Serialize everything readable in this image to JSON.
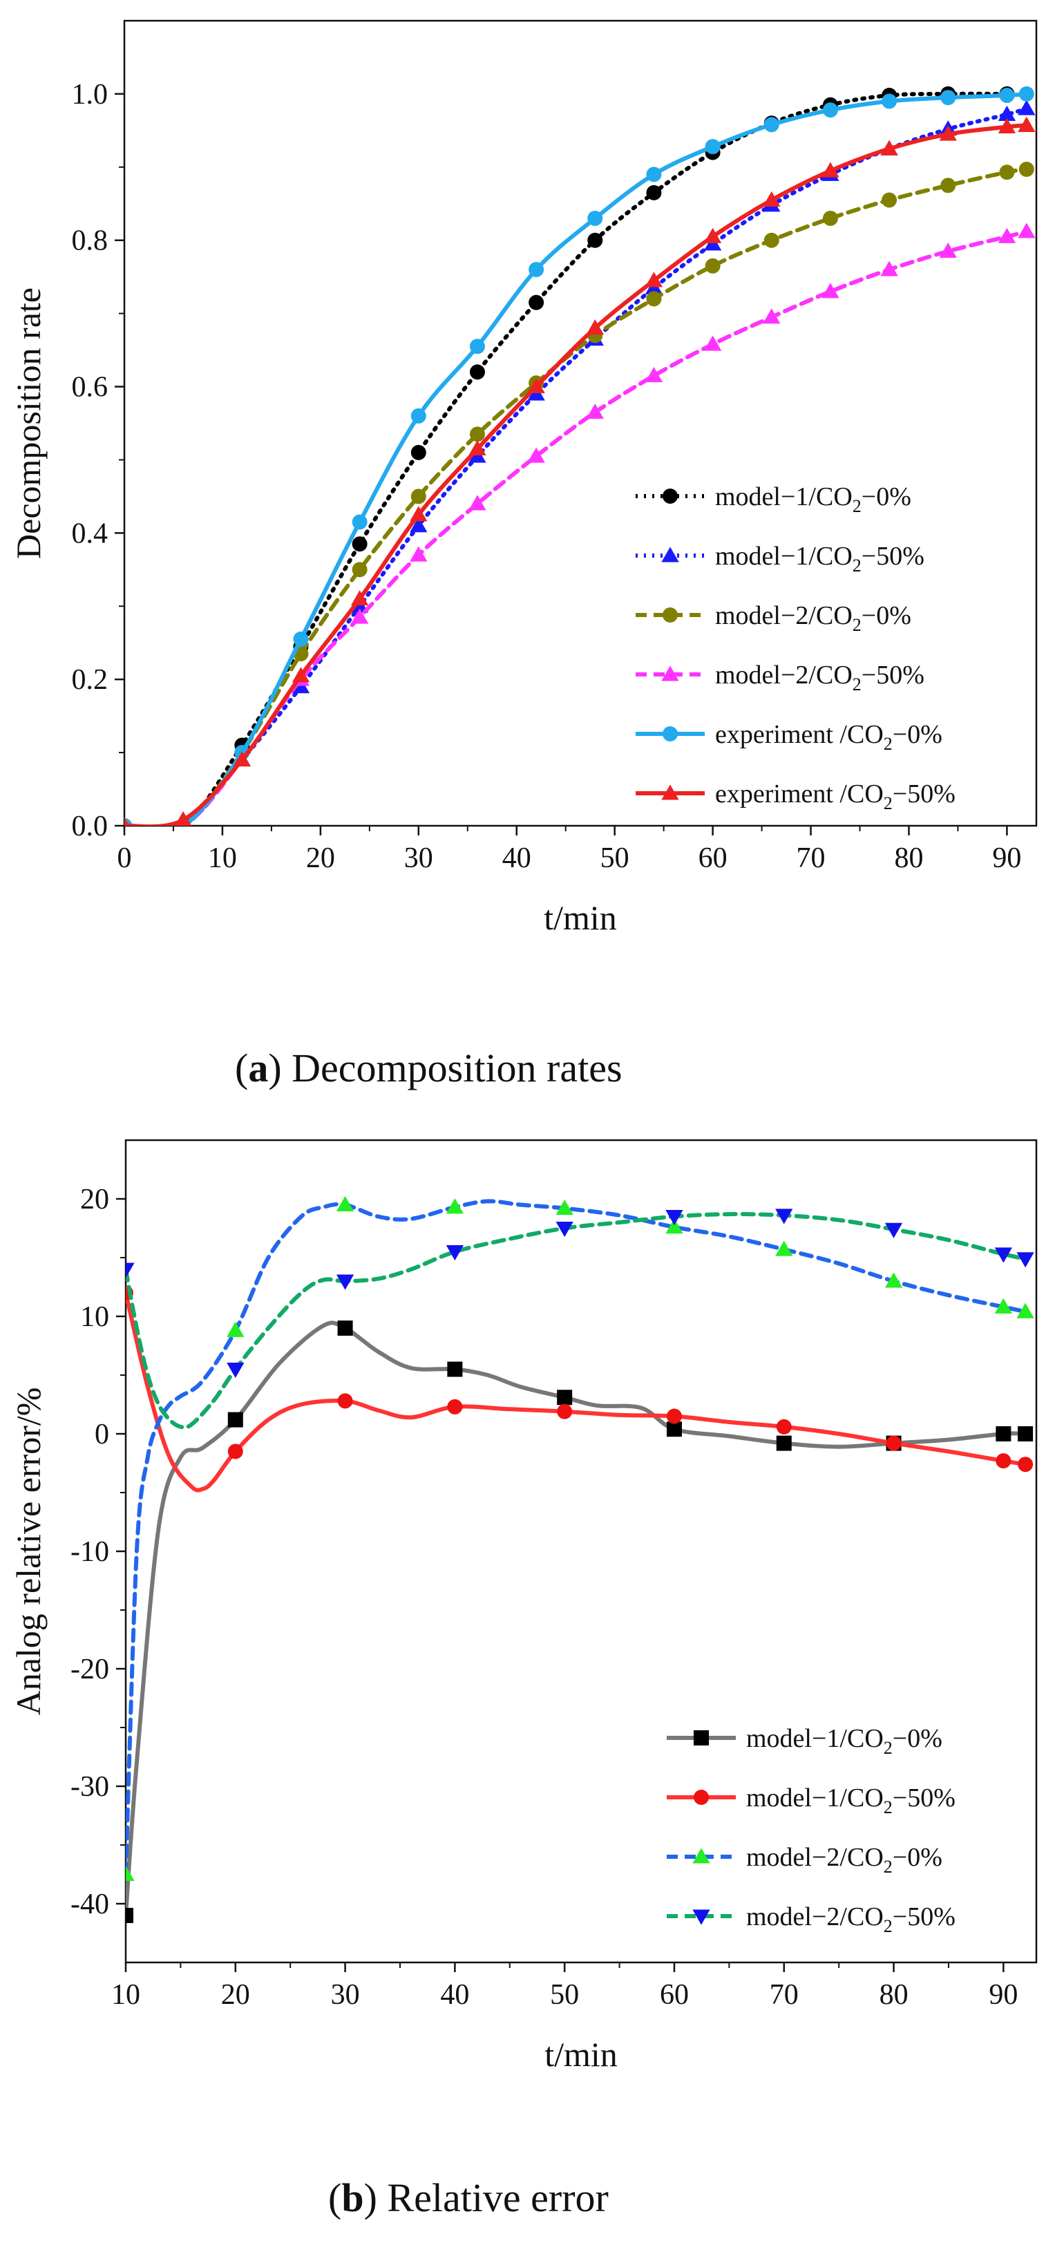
{
  "chart_data": [
    {
      "id": "a",
      "type": "line",
      "caption_letter": "a",
      "caption_text": "Decomposition rates",
      "xlabel": "t/min",
      "ylabel": "Decomposition rate",
      "xlim": [
        0,
        93
      ],
      "ylim": [
        0,
        1.1
      ],
      "xticks": [
        0,
        10,
        20,
        30,
        40,
        50,
        60,
        70,
        80,
        90
      ],
      "xtick_labels": [
        "0",
        "10",
        "20",
        "30",
        "40",
        "50",
        "60",
        "70",
        "80",
        "90"
      ],
      "yticks": [
        0,
        0.2,
        0.4,
        0.6,
        0.8,
        1.0
      ],
      "ytick_labels": [
        "0.0",
        "0.2",
        "0.4",
        "0.6",
        "0.8",
        "1.0"
      ],
      "legend_position": "lower-right",
      "series": [
        {
          "name": "model−1/CO₂−0%",
          "legend_main": "model−1/CO",
          "legend_sub": "2",
          "legend_tail": "−0%",
          "color": "#000000",
          "dash": "dot",
          "marker": "circle",
          "x": [
            0,
            6,
            12,
            18,
            24,
            30,
            36,
            42,
            48,
            54,
            60,
            66,
            72,
            78,
            84,
            90
          ],
          "y": [
            0,
            0,
            0.11,
            0.245,
            0.385,
            0.51,
            0.62,
            0.715,
            0.8,
            0.865,
            0.92,
            0.96,
            0.985,
            0.998,
            1.0,
            1.0
          ]
        },
        {
          "name": "model−1/CO₂−50%",
          "legend_main": "model−1/CO",
          "legend_sub": "2",
          "legend_tail": "−50%",
          "color": "#1a1aff",
          "dash": "dot",
          "marker": "triangle",
          "x": [
            0,
            6,
            12,
            18,
            24,
            30,
            36,
            42,
            48,
            54,
            60,
            66,
            72,
            78,
            84,
            90,
            92
          ],
          "y": [
            0,
            0,
            0.09,
            0.19,
            0.3,
            0.41,
            0.505,
            0.59,
            0.665,
            0.735,
            0.795,
            0.848,
            0.89,
            0.925,
            0.952,
            0.972,
            0.98
          ]
        },
        {
          "name": "model−2/CO₂−0%",
          "legend_main": "model−2/CO",
          "legend_sub": "2",
          "legend_tail": "−0%",
          "color": "#808000",
          "dash": "dash",
          "marker": "circle",
          "x": [
            0,
            6,
            12,
            18,
            24,
            30,
            36,
            42,
            48,
            54,
            60,
            66,
            72,
            78,
            84,
            90,
            92
          ],
          "y": [
            0,
            0,
            0.1,
            0.235,
            0.35,
            0.45,
            0.535,
            0.605,
            0.67,
            0.72,
            0.765,
            0.8,
            0.83,
            0.855,
            0.875,
            0.893,
            0.897
          ]
        },
        {
          "name": "model−2/CO₂−50%",
          "legend_main": "model−2/CO",
          "legend_sub": "2",
          "legend_tail": "−50%",
          "color": "#ff33ff",
          "dash": "dash",
          "marker": "triangle",
          "x": [
            0,
            6,
            12,
            18,
            24,
            30,
            36,
            42,
            48,
            54,
            60,
            66,
            72,
            78,
            84,
            90,
            92
          ],
          "y": [
            0,
            0,
            0.09,
            0.2,
            0.285,
            0.37,
            0.44,
            0.505,
            0.565,
            0.615,
            0.658,
            0.695,
            0.73,
            0.76,
            0.785,
            0.805,
            0.812
          ]
        },
        {
          "name": "experiment /CO₂−0%",
          "legend_main": "experiment /CO",
          "legend_sub": "2",
          "legend_tail": "−0%",
          "color": "#22aaee",
          "dash": "solid",
          "marker": "circle",
          "x": [
            0,
            6,
            12,
            18,
            24,
            30,
            36,
            42,
            48,
            54,
            60,
            66,
            72,
            78,
            84,
            90,
            92
          ],
          "y": [
            0,
            0,
            0.1,
            0.255,
            0.415,
            0.56,
            0.655,
            0.76,
            0.83,
            0.89,
            0.928,
            0.958,
            0.978,
            0.99,
            0.995,
            0.998,
            1.0
          ]
        },
        {
          "name": "experiment /CO₂−50%",
          "legend_main": "experiment /CO",
          "legend_sub": "2",
          "legend_tail": "−50%",
          "color": "#ee2222",
          "dash": "solid",
          "marker": "triangle",
          "x": [
            0,
            6,
            12,
            18,
            24,
            30,
            36,
            42,
            48,
            54,
            60,
            66,
            72,
            78,
            84,
            90,
            92
          ],
          "y": [
            0,
            0.008,
            0.09,
            0.205,
            0.31,
            0.425,
            0.515,
            0.6,
            0.68,
            0.745,
            0.805,
            0.855,
            0.895,
            0.925,
            0.945,
            0.955,
            0.957
          ]
        }
      ]
    },
    {
      "id": "b",
      "type": "line",
      "caption_letter": "b",
      "caption_text": "Relative error",
      "xlabel": "t/min",
      "ylabel": "Analog relative error/%",
      "xlim": [
        10,
        93
      ],
      "ylim": [
        -45,
        25
      ],
      "xticks": [
        10,
        20,
        30,
        40,
        50,
        60,
        70,
        80,
        90
      ],
      "xtick_labels": [
        "10",
        "20",
        "30",
        "40",
        "50",
        "60",
        "70",
        "80",
        "90"
      ],
      "yticks": [
        -40,
        -30,
        -20,
        -10,
        0,
        10,
        20
      ],
      "ytick_labels": [
        "-40",
        "-30",
        "-20",
        "-10",
        "0",
        "10",
        "20"
      ],
      "legend_position": "lower-right",
      "series": [
        {
          "name": "model−1/CO₂−0%",
          "legend_main": "model−1/CO",
          "legend_sub": "2",
          "legend_tail": "−0%",
          "color": "#777777",
          "marker_color": "#000000",
          "dash": "solid",
          "marker": "square",
          "x": [
            10,
            20,
            30,
            40,
            50,
            60,
            70,
            80,
            90,
            92
          ],
          "y": [
            -41,
            1.2,
            9,
            5.5,
            3.1,
            0.4,
            -0.8,
            -0.8,
            0,
            0
          ],
          "curve_x": [
            10,
            11,
            13,
            15,
            17,
            20,
            24,
            28,
            30,
            33,
            36,
            40,
            43,
            46,
            50,
            53,
            57,
            60,
            65,
            70,
            75,
            80,
            85,
            90,
            92
          ],
          "curve_y": [
            -41,
            -28,
            -8,
            -2,
            -1.2,
            1.2,
            6,
            9.2,
            9,
            7,
            5.6,
            5.5,
            5,
            4,
            3.1,
            2.4,
            2.2,
            0.4,
            -0.2,
            -0.8,
            -1.1,
            -0.8,
            -0.5,
            0,
            0
          ]
        },
        {
          "name": "model−1/CO₂−50%",
          "legend_main": "model−1/CO",
          "legend_sub": "2",
          "legend_tail": "−50%",
          "color": "#ff3333",
          "marker_color": "#ee1111",
          "dash": "solid",
          "marker": "circle",
          "x": [
            10,
            20,
            30,
            40,
            50,
            60,
            70,
            80,
            90,
            92
          ],
          "y": [
            12,
            -1.5,
            2.8,
            2.3,
            1.9,
            1.5,
            0.6,
            -0.8,
            -2.3,
            -2.6
          ],
          "curve_x": [
            10,
            12,
            14,
            16,
            17,
            18,
            20,
            23,
            26,
            30,
            33,
            36,
            40,
            45,
            50,
            55,
            60,
            65,
            70,
            75,
            80,
            85,
            90,
            92
          ],
          "curve_y": [
            12,
            4,
            -2,
            -4.5,
            -4.7,
            -4,
            -1.5,
            1.2,
            2.5,
            2.8,
            2,
            1.4,
            2.3,
            2.1,
            1.9,
            1.6,
            1.5,
            1,
            0.6,
            0,
            -0.8,
            -1.5,
            -2.3,
            -2.6
          ]
        },
        {
          "name": "model−2/CO₂−0%",
          "legend_main": "model−2/CO",
          "legend_sub": "2",
          "legend_tail": "−0%",
          "color": "#2266ee",
          "marker_color": "#22ee22",
          "dash": "dash",
          "marker": "triangle",
          "x": [
            10,
            20,
            30,
            40,
            50,
            60,
            70,
            80,
            90,
            92
          ],
          "y": [
            -37.5,
            8.8,
            19.5,
            19.3,
            19.2,
            17.6,
            15.7,
            13,
            10.8,
            10.4
          ],
          "curve_x": [
            10,
            11,
            12,
            13,
            14,
            15,
            17,
            20,
            23,
            26,
            28,
            30,
            33,
            36,
            40,
            43,
            46,
            50,
            55,
            60,
            65,
            70,
            75,
            80,
            85,
            90,
            92
          ],
          "curve_y": [
            -37.5,
            -10,
            -2,
            1,
            2.5,
            3.2,
            4.5,
            8.8,
            15,
            18.5,
            19.3,
            19.5,
            18.5,
            18.3,
            19.3,
            19.8,
            19.5,
            19.2,
            18.6,
            17.6,
            16.8,
            15.7,
            14.5,
            13,
            11.8,
            10.8,
            10.4
          ]
        },
        {
          "name": "model−2/CO₂−50%",
          "legend_main": "model−2/CO",
          "legend_sub": "2",
          "legend_tail": "−50%",
          "color": "#11aa66",
          "marker_color": "#1111ee",
          "dash": "dash",
          "marker": "triangle-down",
          "x": [
            10,
            20,
            30,
            40,
            50,
            60,
            70,
            80,
            90,
            92
          ],
          "y": [
            14,
            5.5,
            13,
            15.5,
            17.5,
            18.5,
            18.6,
            17.4,
            15.3,
            14.9
          ],
          "curve_x": [
            10,
            11,
            12,
            13,
            14,
            15,
            16,
            18,
            20,
            23,
            26,
            28,
            30,
            33,
            36,
            40,
            45,
            50,
            55,
            60,
            65,
            70,
            75,
            80,
            85,
            90,
            92
          ],
          "curve_y": [
            14,
            9,
            5,
            2.5,
            1.2,
            0.6,
            0.8,
            2.8,
            5.5,
            9,
            12,
            13.1,
            13,
            13.2,
            14,
            15.5,
            16.6,
            17.5,
            18,
            18.5,
            18.7,
            18.6,
            18.2,
            17.4,
            16.5,
            15.3,
            14.9
          ]
        }
      ]
    }
  ]
}
